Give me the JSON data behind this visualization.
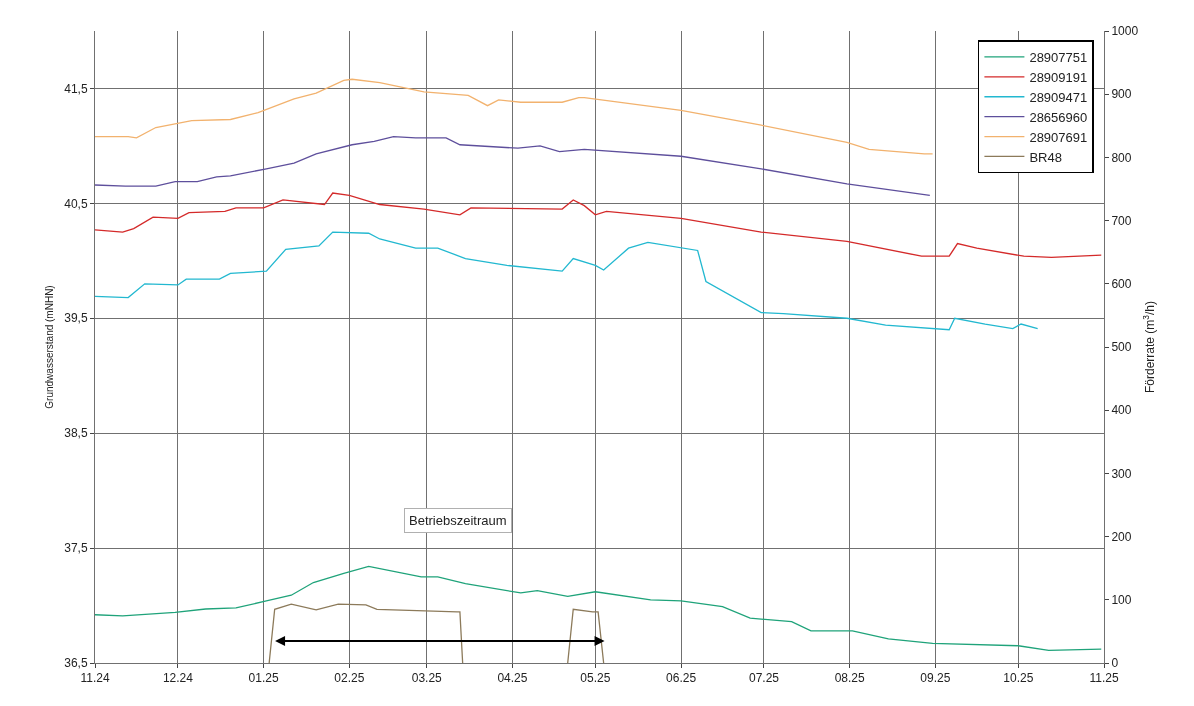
{
  "chart_data": {
    "type": "line",
    "ylabel": "Grundwasserstand (mNHN)",
    "y2label": "Förderrate (m$^{3}$/h)",
    "xlim": [
      "2024-11-01",
      "2025-11-01"
    ],
    "xticks": [
      {
        "value": "2024-11-01",
        "label": "11.24"
      },
      {
        "value": "2024-12-01",
        "label": "12.24"
      },
      {
        "value": "2025-01-01",
        "label": "01.25"
      },
      {
        "value": "2025-02-01",
        "label": "02.25"
      },
      {
        "value": "2025-03-01",
        "label": "03.25"
      },
      {
        "value": "2025-04-01",
        "label": "04.25"
      },
      {
        "value": "2025-05-01",
        "label": "05.25"
      },
      {
        "value": "2025-06-01",
        "label": "06.25"
      },
      {
        "value": "2025-07-01",
        "label": "07.25"
      },
      {
        "value": "2025-08-01",
        "label": "08.25"
      },
      {
        "value": "2025-09-01",
        "label": "09.25"
      },
      {
        "value": "2025-10-01",
        "label": "10.25"
      },
      {
        "value": "2025-11-01",
        "label": "11.25"
      }
    ],
    "ylim": [
      36.5,
      42.0
    ],
    "yticks": [
      {
        "value": 36.5,
        "label": "36,5"
      },
      {
        "value": 37.5,
        "label": "37,5"
      },
      {
        "value": 38.5,
        "label": "38,5"
      },
      {
        "value": 39.5,
        "label": "39,5"
      },
      {
        "value": 40.5,
        "label": "40,5"
      },
      {
        "value": 41.5,
        "label": "41,5"
      }
    ],
    "y2lim": [
      0,
      1000
    ],
    "y2ticks": [
      0,
      100,
      200,
      300,
      400,
      500,
      600,
      700,
      800,
      900,
      1000
    ],
    "grid": true,
    "legend": "top right",
    "marker": "none",
    "line_style": "solid",
    "annotations": [
      "Betriebszeitraum"
    ],
    "series": [
      {
        "name": "28907751",
        "color": "#1fa37a",
        "x": [
          "2024-11-01",
          "2024-11-11",
          "2024-11-30",
          "2024-12-11",
          "2024-12-22",
          "2025-01-02",
          "2025-01-11",
          "2025-01-19",
          "2025-01-30",
          "2025-02-08",
          "2025-02-27",
          "2025-03-05",
          "2025-03-15",
          "2025-04-04",
          "2025-04-10",
          "2025-04-21",
          "2025-05-01",
          "2025-05-21",
          "2025-06-01",
          "2025-06-16",
          "2025-06-26",
          "2025-07-11",
          "2025-07-18",
          "2025-08-02",
          "2025-08-15",
          "2025-08-31",
          "2025-10-01",
          "2025-10-12",
          "2025-10-31"
        ],
        "values": [
          36.92,
          36.91,
          36.94,
          36.97,
          36.98,
          37.04,
          37.09,
          37.2,
          37.28,
          37.34,
          37.25,
          37.25,
          37.19,
          37.11,
          37.13,
          37.08,
          37.12,
          37.05,
          37.04,
          36.99,
          36.89,
          36.86,
          36.78,
          36.78,
          36.71,
          36.67,
          36.65,
          36.61,
          36.62
        ]
      },
      {
        "name": "28909191",
        "color": "#d42a2a",
        "x": [
          "2024-11-01",
          "2024-11-11",
          "2024-11-15",
          "2024-11-22",
          "2024-12-01",
          "2024-12-05",
          "2024-12-18",
          "2024-12-22",
          "2025-01-01",
          "2025-01-08",
          "2025-01-23",
          "2025-01-26",
          "2025-02-01",
          "2025-02-12",
          "2025-02-28",
          "2025-03-13",
          "2025-03-17",
          "2025-04-19",
          "2025-04-23",
          "2025-04-27",
          "2025-05-01",
          "2025-05-05",
          "2025-06-01",
          "2025-06-30",
          "2025-07-31",
          "2025-08-27",
          "2025-09-06",
          "2025-09-09",
          "2025-09-16",
          "2025-10-03",
          "2025-10-13",
          "2025-10-31"
        ],
        "values": [
          40.27,
          40.25,
          40.28,
          40.38,
          40.37,
          40.42,
          40.43,
          40.46,
          40.46,
          40.53,
          40.49,
          40.59,
          40.57,
          40.49,
          40.45,
          40.4,
          40.46,
          40.45,
          40.53,
          40.48,
          40.4,
          40.43,
          40.37,
          40.25,
          40.17,
          40.04,
          40.04,
          40.15,
          40.11,
          40.04,
          40.03,
          40.05
        ]
      },
      {
        "name": "28909471",
        "color": "#22b8d0",
        "x": [
          "2024-11-01",
          "2024-11-13",
          "2024-11-19",
          "2024-12-01",
          "2024-12-04",
          "2024-12-16",
          "2024-12-20",
          "2025-01-02",
          "2025-01-09",
          "2025-01-21",
          "2025-01-26",
          "2025-02-08",
          "2025-02-12",
          "2025-02-25",
          "2025-03-05",
          "2025-03-15",
          "2025-03-30",
          "2025-04-19",
          "2025-04-23",
          "2025-05-01",
          "2025-05-04",
          "2025-05-13",
          "2025-05-20",
          "2025-06-07",
          "2025-06-10",
          "2025-06-30",
          "2025-07-08",
          "2025-07-31",
          "2025-08-14",
          "2025-09-06",
          "2025-09-08",
          "2025-09-19",
          "2025-09-29",
          "2025-10-02",
          "2025-10-08"
        ],
        "values": [
          39.69,
          39.68,
          39.8,
          39.79,
          39.84,
          39.84,
          39.89,
          39.91,
          40.1,
          40.13,
          40.25,
          40.24,
          40.19,
          40.11,
          40.11,
          40.02,
          39.96,
          39.91,
          40.02,
          39.96,
          39.92,
          40.11,
          40.16,
          40.09,
          39.82,
          39.55,
          39.54,
          39.5,
          39.44,
          39.4,
          39.5,
          39.45,
          39.41,
          39.45,
          39.41
        ]
      },
      {
        "name": "28656960",
        "color": "#5e4f9c",
        "x": [
          "2024-11-01",
          "2024-11-12",
          "2024-11-23",
          "2024-11-30",
          "2024-12-08",
          "2024-12-15",
          "2024-12-20",
          "2025-01-02",
          "2025-01-12",
          "2025-01-20",
          "2025-02-02",
          "2025-02-10",
          "2025-02-17",
          "2025-02-25",
          "2025-03-08",
          "2025-03-13",
          "2025-04-03",
          "2025-04-11",
          "2025-04-18",
          "2025-04-27",
          "2025-06-01",
          "2025-06-30",
          "2025-07-31",
          "2025-08-30"
        ],
        "values": [
          40.66,
          40.65,
          40.65,
          40.69,
          40.69,
          40.73,
          40.74,
          40.8,
          40.85,
          40.93,
          41.01,
          41.04,
          41.08,
          41.07,
          41.07,
          41.01,
          40.98,
          41.0,
          40.95,
          40.97,
          40.91,
          40.8,
          40.67,
          40.57
        ]
      },
      {
        "name": "28907691",
        "color": "#f2b26e",
        "x": [
          "2024-11-01",
          "2024-11-13",
          "2024-11-16",
          "2024-11-23",
          "2024-12-06",
          "2024-12-20",
          "2024-12-30",
          "2025-01-12",
          "2025-01-20",
          "2025-01-30",
          "2025-02-02",
          "2025-02-12",
          "2025-02-28",
          "2025-03-16",
          "2025-03-23",
          "2025-03-27",
          "2025-04-04",
          "2025-04-19",
          "2025-04-25",
          "2025-04-27",
          "2025-06-01",
          "2025-06-30",
          "2025-07-31",
          "2025-08-08",
          "2025-08-28",
          "2025-08-31"
        ],
        "values": [
          41.08,
          41.08,
          41.07,
          41.16,
          41.22,
          41.23,
          41.29,
          41.41,
          41.46,
          41.57,
          41.58,
          41.55,
          41.47,
          41.44,
          41.35,
          41.4,
          41.38,
          41.38,
          41.42,
          41.42,
          41.31,
          41.18,
          41.03,
          40.97,
          40.93,
          40.93
        ]
      },
      {
        "name": "BR48",
        "color": "#8c7a5a",
        "axis": "y2",
        "x": [
          "2025-01-03",
          "2025-01-05",
          "2025-01-11",
          "2025-01-20",
          "2025-01-28",
          "2025-02-07",
          "2025-02-11",
          "2025-03-12",
          "2025-03-13",
          "2025-03-14",
          "2025-04-01",
          "2025-04-21",
          "2025-04-23",
          "2025-04-30",
          "2025-05-02",
          "2025-05-04"
        ],
        "values": [
          0,
          85,
          93,
          84,
          93,
          92,
          85,
          81,
          81,
          0,
          null,
          0,
          85,
          81,
          81,
          0
        ]
      }
    ]
  }
}
